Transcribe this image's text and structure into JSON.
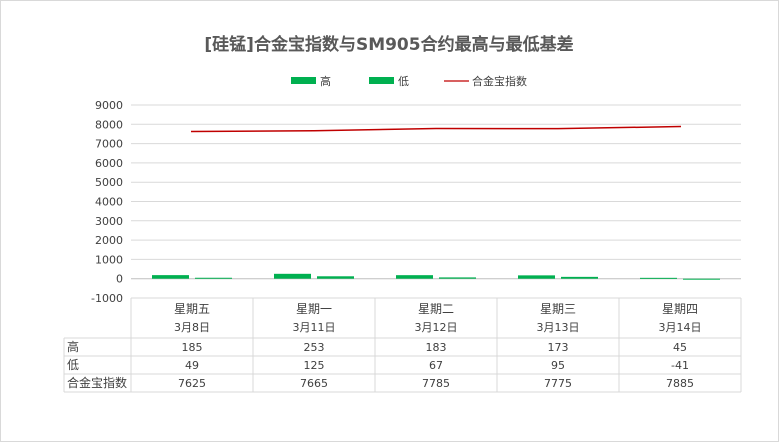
{
  "chart_data": {
    "type": "bar",
    "title": "[硅锰]合金宝指数与SM905合约最高与最低基差",
    "categories": [
      [
        "星期五",
        "3月8日"
      ],
      [
        "星期一",
        "3月11日"
      ],
      [
        "星期二",
        "3月12日"
      ],
      [
        "星期三",
        "3月13日"
      ],
      [
        "星期四",
        "3月14日"
      ]
    ],
    "series": [
      {
        "name": "高",
        "type": "bar",
        "color": "#00b050",
        "values": [
          185,
          253,
          183,
          173,
          45
        ]
      },
      {
        "name": "低",
        "type": "bar",
        "color": "#00b050",
        "values": [
          49,
          125,
          67,
          95,
          -41
        ]
      },
      {
        "name": "合金宝指数",
        "type": "line",
        "color": "#c00000",
        "values": [
          7625,
          7665,
          7785,
          7775,
          7885
        ]
      }
    ],
    "ylim": [
      -1000,
      9000
    ],
    "yticks": [
      -1000,
      0,
      1000,
      2000,
      3000,
      4000,
      5000,
      6000,
      7000,
      8000,
      9000
    ],
    "grid": true,
    "legend": "top",
    "data_table": true
  }
}
